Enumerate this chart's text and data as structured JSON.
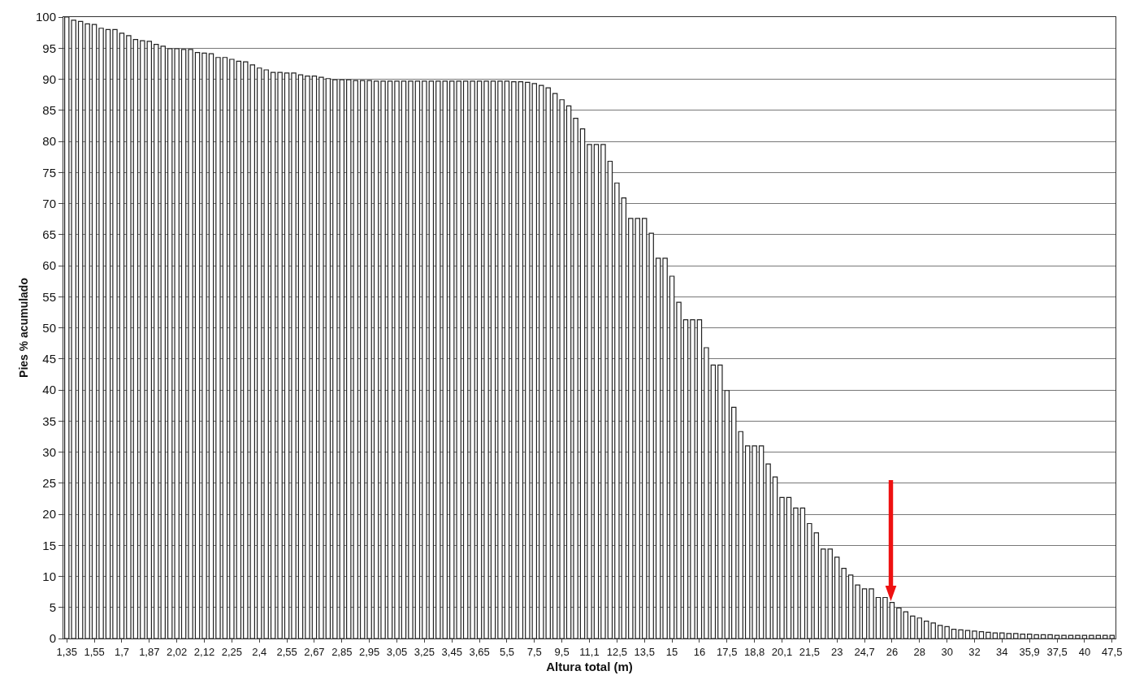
{
  "chart_data": {
    "type": "bar",
    "xlabel": "Altura total (m)",
    "ylabel": "Pies % acumulado",
    "categories": [
      "1,35",
      null,
      null,
      null,
      "1,55",
      null,
      null,
      null,
      "1,7",
      null,
      null,
      null,
      "1,87",
      null,
      null,
      null,
      "2,02",
      null,
      null,
      null,
      "2,12",
      null,
      null,
      null,
      "2,25",
      null,
      null,
      null,
      "2,4",
      null,
      null,
      null,
      "2,55",
      null,
      null,
      null,
      "2,67",
      null,
      null,
      null,
      "2,85",
      null,
      null,
      null,
      "2,95",
      null,
      null,
      null,
      "3,05",
      null,
      null,
      null,
      "3,25",
      null,
      null,
      null,
      "3,45",
      null,
      null,
      null,
      "3,65",
      null,
      null,
      null,
      "5,5",
      null,
      null,
      null,
      "7,5",
      null,
      null,
      null,
      "9,5",
      null,
      null,
      null,
      "11,1",
      null,
      null,
      null,
      "12,5",
      null,
      null,
      null,
      "13,5",
      null,
      null,
      null,
      "15",
      null,
      null,
      null,
      "16",
      null,
      null,
      null,
      "17,5",
      null,
      null,
      null,
      "18,8",
      null,
      null,
      null,
      "20,1",
      null,
      null,
      null,
      "21,5",
      null,
      null,
      null,
      "23",
      null,
      null,
      null,
      "24,7",
      null,
      null,
      null,
      "26",
      null,
      null,
      null,
      "28",
      null,
      null,
      null,
      "30",
      null,
      null,
      null,
      "32",
      null,
      null,
      null,
      "34",
      null,
      null,
      null,
      "35,9",
      null,
      null,
      null,
      "37,5",
      null,
      null,
      null,
      "40",
      null,
      null,
      null,
      "47,5"
    ],
    "values": [
      100,
      99.5,
      99.3,
      98.9,
      98.8,
      98.2,
      98,
      98,
      97.4,
      97,
      96.4,
      96.2,
      96.1,
      95.6,
      95.3,
      94.9,
      94.9,
      94.8,
      94.8,
      94.3,
      94.2,
      94.1,
      93.5,
      93.5,
      93.2,
      92.9,
      92.8,
      92.3,
      91.8,
      91.5,
      91.1,
      91.1,
      91,
      91,
      90.7,
      90.5,
      90.5,
      90.3,
      90.1,
      89.9,
      89.9,
      89.9,
      89.8,
      89.8,
      89.8,
      89.7,
      89.7,
      89.7,
      89.7,
      89.7,
      89.7,
      89.7,
      89.7,
      89.7,
      89.7,
      89.7,
      89.7,
      89.7,
      89.7,
      89.7,
      89.7,
      89.7,
      89.7,
      89.7,
      89.7,
      89.6,
      89.6,
      89.5,
      89.3,
      89,
      88.6,
      87.7,
      86.7,
      85.7,
      83.7,
      82,
      79.5,
      79.5,
      79.5,
      76.8,
      73.3,
      70.9,
      67.6,
      67.6,
      67.6,
      65.2,
      61.2,
      61.2,
      58.3,
      54.1,
      51.3,
      51.3,
      51.3,
      46.8,
      44,
      44,
      39.9,
      37.2,
      33.3,
      31,
      31,
      31,
      28.1,
      26,
      22.7,
      22.7,
      21,
      21,
      18.5,
      17,
      14.4,
      14.4,
      13.1,
      11.3,
      10.2,
      8.6,
      8,
      8,
      6.6,
      6.6,
      5.8,
      4.9,
      4.3,
      3.6,
      3.3,
      2.8,
      2.5,
      2.1,
      1.9,
      1.5,
      1.4,
      1.3,
      1.2,
      1.1,
      1,
      0.9,
      0.9,
      0.8,
      0.8,
      0.7,
      0.7,
      0.6,
      0.6,
      0.6,
      0.5,
      0.5,
      0.5,
      0.5,
      0.5,
      0.5,
      0.5,
      0.5,
      0.5
    ],
    "color": "#ffffff",
    "ylim": [
      0,
      100
    ],
    "yticks": [
      0,
      5,
      10,
      15,
      20,
      25,
      30,
      35,
      40,
      45,
      50,
      55,
      60,
      65,
      70,
      75,
      80,
      85,
      90,
      95,
      100
    ],
    "grid": "y"
  }
}
